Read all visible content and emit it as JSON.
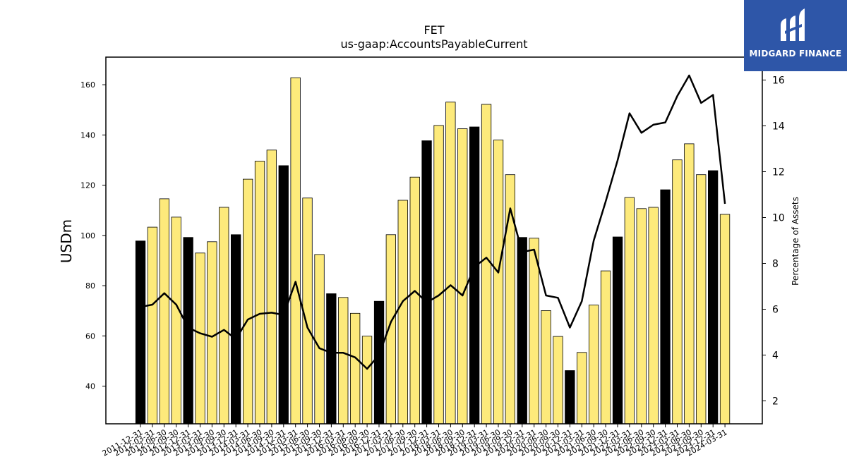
{
  "chart_data": {
    "type": "bar",
    "title": "FET",
    "subtitle": "us-gaap:AccountsPayableCurrent",
    "ylabel": "USDm",
    "y2label": "Percentage of Assets",
    "ylim": [
      25,
      171
    ],
    "y2lim": [
      1,
      17
    ],
    "yticks": [
      40,
      60,
      80,
      100,
      120,
      140,
      160
    ],
    "y2ticks": [
      2,
      4,
      6,
      8,
      10,
      12,
      14,
      16
    ],
    "grid": false,
    "colors": {
      "annual_bar": "#000000",
      "quarter_bar": "#fdea7b",
      "line": "#000000"
    },
    "categories": [
      "2011-12-31",
      "2012-03-31",
      "2012-06-30",
      "2012-09-30",
      "2012-12-31",
      "2013-03-31",
      "2013-06-30",
      "2013-09-30",
      "2013-12-31",
      "2014-03-31",
      "2014-06-30",
      "2014-09-30",
      "2014-12-31",
      "2015-03-31",
      "2015-06-30",
      "2015-09-30",
      "2015-12-31",
      "2016-03-31",
      "2016-06-30",
      "2016-09-30",
      "2016-12-31",
      "2017-03-31",
      "2017-06-30",
      "2017-09-30",
      "2017-12-31",
      "2018-03-31",
      "2018-06-30",
      "2018-09-30",
      "2018-12-31",
      "2019-03-31",
      "2019-06-30",
      "2019-09-30",
      "2019-12-31",
      "2020-03-31",
      "2020-06-30",
      "2020-09-30",
      "2020-12-31",
      "2021-03-31",
      "2021-06-30",
      "2021-09-30",
      "2021-12-31",
      "2022-03-31",
      "2022-06-30",
      "2022-09-30",
      "2022-12-31",
      "2023-03-31",
      "2023-06-30",
      "2023-09-30",
      "2023-12-31",
      "2024-03-31"
    ],
    "series": [
      {
        "type": "bar",
        "values": [
          97.8,
          103.3,
          114.6,
          107.3,
          99.2,
          93.0,
          97.5,
          111.2,
          100.3,
          122.4,
          129.6,
          134.0,
          127.8,
          162.8,
          114.9,
          92.4,
          76.8,
          75.3,
          69.0,
          59.9,
          73.8,
          100.3,
          114.0,
          123.2,
          137.7,
          143.8,
          153.1,
          142.5,
          143.2,
          152.2,
          138.0,
          124.2,
          99.2,
          98.9,
          70.1,
          59.8,
          46.2,
          53.4,
          72.3,
          85.9,
          99.4,
          115.1,
          110.7,
          111.2,
          118.2,
          130.1,
          136.5,
          124.2,
          125.8,
          108.4
        ],
        "annual": [
          true,
          false,
          false,
          false,
          true,
          false,
          false,
          false,
          true,
          false,
          false,
          false,
          true,
          false,
          false,
          false,
          true,
          false,
          false,
          false,
          true,
          false,
          false,
          false,
          true,
          false,
          false,
          false,
          true,
          false,
          false,
          false,
          true,
          false,
          false,
          false,
          true,
          false,
          false,
          false,
          true,
          false,
          false,
          false,
          true,
          false,
          false,
          false,
          true,
          false
        ]
      },
      {
        "type": "line",
        "axis": "right",
        "values": [
          6.1,
          6.2,
          6.7,
          6.2,
          5.2,
          4.95,
          4.8,
          5.1,
          4.7,
          5.55,
          5.8,
          5.85,
          5.75,
          7.2,
          5.2,
          4.3,
          4.1,
          4.1,
          3.9,
          3.4,
          4.0,
          5.45,
          6.35,
          6.8,
          6.3,
          6.6,
          7.05,
          6.6,
          7.85,
          8.25,
          7.6,
          10.4,
          8.5,
          8.6,
          6.6,
          6.5,
          5.2,
          6.35,
          9.0,
          10.7,
          12.5,
          14.55,
          13.7,
          14.05,
          14.15,
          15.3,
          16.2,
          15.0,
          15.35,
          10.6
        ]
      }
    ]
  },
  "logo": {
    "text": "MIDGARD FINANCE"
  }
}
